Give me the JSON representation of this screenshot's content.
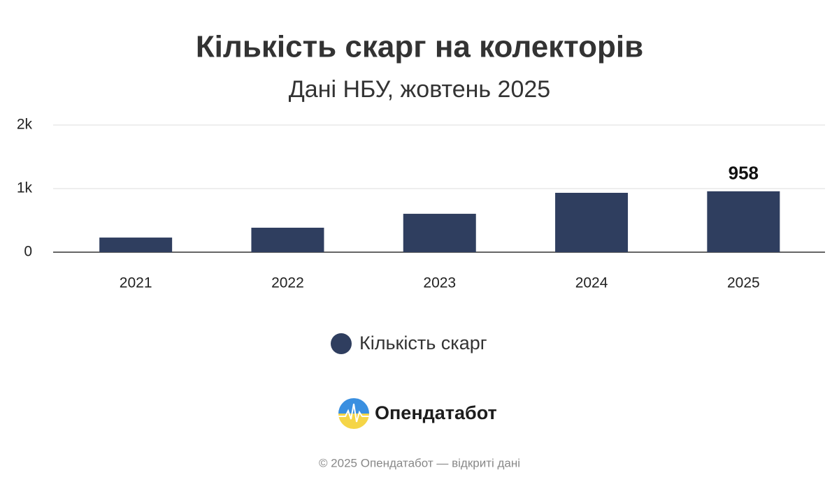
{
  "chart_data": {
    "type": "bar",
    "title": "Кількість скарг на колекторів",
    "subtitle": "Дані НБУ, жовтень 2025",
    "categories": [
      "2021",
      "2022",
      "2023",
      "2024",
      "2025"
    ],
    "series": [
      {
        "name": "Кількість скарг",
        "color": "#2f3e5f",
        "values": [
          230,
          385,
          604,
          934,
          958
        ]
      }
    ],
    "show_value_labels": [
      false,
      false,
      false,
      false,
      true
    ],
    "ylim": [
      0,
      2000
    ],
    "yticks": [
      0,
      {
        "value": 1000,
        "label": "1k"
      },
      {
        "value": 2000,
        "label": "2k"
      }
    ],
    "grid": true
  },
  "brand": "Опендатабот",
  "footer": "© 2025 Опендатабот — відкриті дані"
}
